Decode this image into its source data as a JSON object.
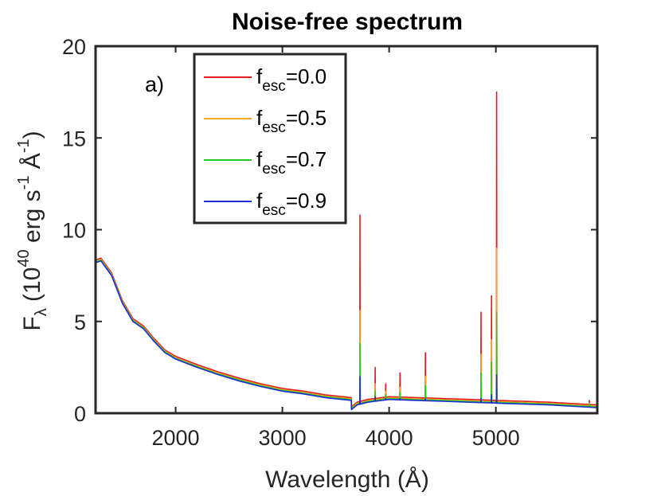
{
  "chart_data": {
    "type": "line",
    "title": "Noise-free spectrum",
    "panel_label": "a)",
    "xlabel": "Wavelength (Å)",
    "ylabel": {
      "prefix": "F",
      "sub": "λ",
      "open": " (10",
      "exp": "40",
      "mid": " erg s",
      "exp2": "-1",
      "mid2": " Å",
      "exp3": "-1",
      "close": ")"
    },
    "xlim": [
      1250,
      5950
    ],
    "ylim": [
      0,
      20
    ],
    "xticks": [
      2000,
      3000,
      4000,
      5000
    ],
    "yticks": [
      0,
      5,
      10,
      15,
      20
    ],
    "continuum": [
      [
        1250,
        8.2
      ],
      [
        1300,
        8.3
      ],
      [
        1400,
        7.5
      ],
      [
        1500,
        6.0
      ],
      [
        1600,
        5.0
      ],
      [
        1700,
        4.6
      ],
      [
        1800,
        3.9
      ],
      [
        1900,
        3.3
      ],
      [
        2000,
        2.95
      ],
      [
        2200,
        2.5
      ],
      [
        2400,
        2.1
      ],
      [
        2600,
        1.75
      ],
      [
        2800,
        1.45
      ],
      [
        3000,
        1.2
      ],
      [
        3200,
        1.05
      ],
      [
        3400,
        0.85
      ],
      [
        3646,
        0.7
      ],
      [
        3647,
        0.2
      ],
      [
        3700,
        0.45
      ],
      [
        3800,
        0.6
      ],
      [
        4000,
        0.75
      ],
      [
        4500,
        0.65
      ],
      [
        5000,
        0.55
      ],
      [
        5500,
        0.45
      ],
      [
        5950,
        0.3
      ]
    ],
    "lines": [
      {
        "x": 3727,
        "values": [
          10.8,
          5.6,
          3.8,
          2.0
        ]
      },
      {
        "x": 3869,
        "values": [
          2.5,
          1.6,
          1.2,
          0.9
        ]
      },
      {
        "x": 3968,
        "values": [
          1.6,
          1.2,
          1.0,
          0.8
        ]
      },
      {
        "x": 4102,
        "values": [
          2.2,
          1.4,
          1.1,
          0.8
        ]
      },
      {
        "x": 4340,
        "values": [
          3.3,
          2.0,
          1.5,
          0.8
        ]
      },
      {
        "x": 4861,
        "values": [
          5.5,
          3.2,
          2.2,
          0.8
        ]
      },
      {
        "x": 4959,
        "values": [
          6.4,
          4.0,
          2.8,
          1.0
        ]
      },
      {
        "x": 5007,
        "values": [
          17.5,
          9.0,
          5.5,
          2.1
        ]
      },
      {
        "x": 5876,
        "values": [
          0.7,
          0.55,
          0.5,
          0.35
        ]
      }
    ],
    "series": [
      {
        "name": "f_esc=0.0",
        "label_main": "f",
        "label_sub": "esc",
        "label_val": "=0.0",
        "color": "#e41a1c",
        "offset": 0.15
      },
      {
        "name": "f_esc=0.5",
        "label_main": "f",
        "label_sub": "esc",
        "label_val": "=0.5",
        "color": "#f5a623",
        "offset": 0.08
      },
      {
        "name": "f_esc=0.7",
        "label_main": "f",
        "label_sub": "esc",
        "label_val": "=0.7",
        "color": "#22cc22",
        "offset": 0.04
      },
      {
        "name": "f_esc=0.9",
        "label_main": "f",
        "label_sub": "esc",
        "label_val": "=0.9",
        "color": "#1f2fd6",
        "offset": 0.0
      }
    ],
    "legend_position": "top-center"
  }
}
